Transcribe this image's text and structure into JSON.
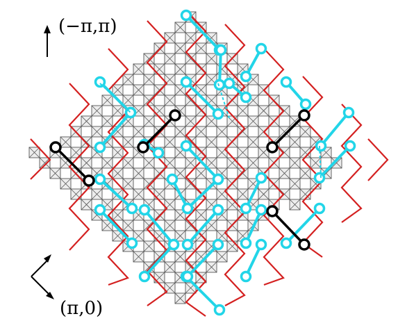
{
  "labels": {
    "top_axis": "(−π,π)",
    "bottom_axis": "(π,0)"
  },
  "colors": {
    "lattice_path": "#d42020",
    "dimer_cyan": "#22d5e8",
    "dimer_black": "#000000",
    "site_fill": "#ededed"
  }
}
